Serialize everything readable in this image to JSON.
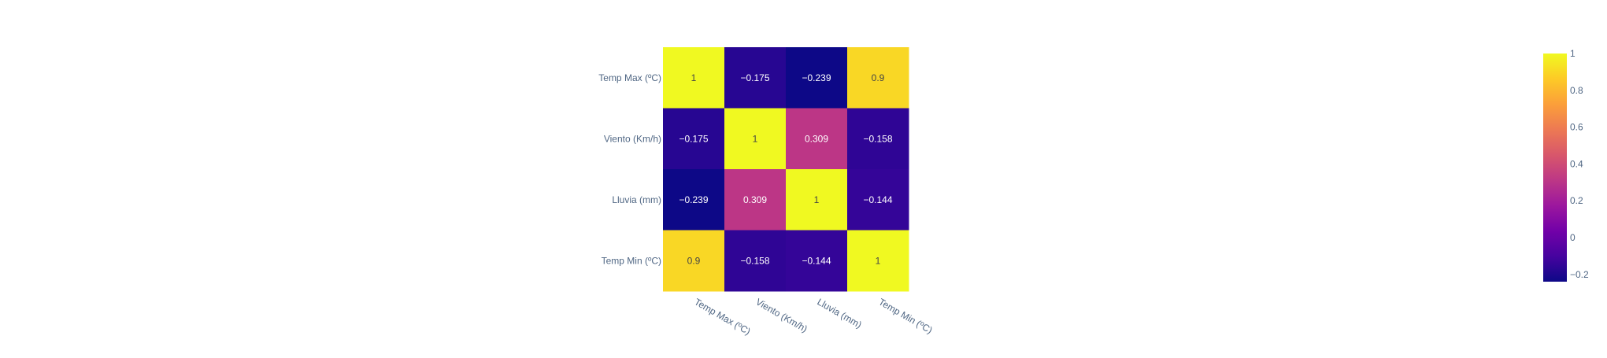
{
  "chart_data": {
    "type": "heatmap",
    "title": "",
    "xlabel": "",
    "ylabel": "",
    "x_categories": [
      "Temp Max (ºC)",
      "Viento (Km/h)",
      "Lluvia (mm)",
      "Temp Min (ºC)"
    ],
    "y_categories": [
      "Temp Max (ºC)",
      "Viento (Km/h)",
      "Lluvia (mm)",
      "Temp Min (ºC)"
    ],
    "values": [
      [
        1,
        -0.175,
        -0.239,
        0.9
      ],
      [
        -0.175,
        1,
        0.309,
        -0.158
      ],
      [
        -0.239,
        0.309,
        1,
        -0.144
      ],
      [
        0.9,
        -0.158,
        -0.144,
        1
      ]
    ],
    "cell_labels": [
      [
        "1",
        "−0.175",
        "−0.239",
        "0.9"
      ],
      [
        "−0.175",
        "1",
        "0.309",
        "−0.158"
      ],
      [
        "−0.239",
        "0.309",
        "1",
        "−0.144"
      ],
      [
        "0.9",
        "−0.158",
        "−0.144",
        "1"
      ]
    ],
    "colorscale": [
      "#0d0887",
      "#46039f",
      "#7201a8",
      "#9c179e",
      "#bd3786",
      "#d8576b",
      "#ed7953",
      "#fb9f3a",
      "#fdca26",
      "#f0f921"
    ],
    "zmin": -0.239,
    "zmax": 1,
    "colorbar": {
      "ticks": [
        1,
        0.8,
        0.6,
        0.4,
        0.2,
        0,
        -0.2
      ],
      "tick_labels": [
        "1",
        "0.8",
        "0.6",
        "0.4",
        "0.2",
        "0",
        "−0.2"
      ]
    }
  }
}
